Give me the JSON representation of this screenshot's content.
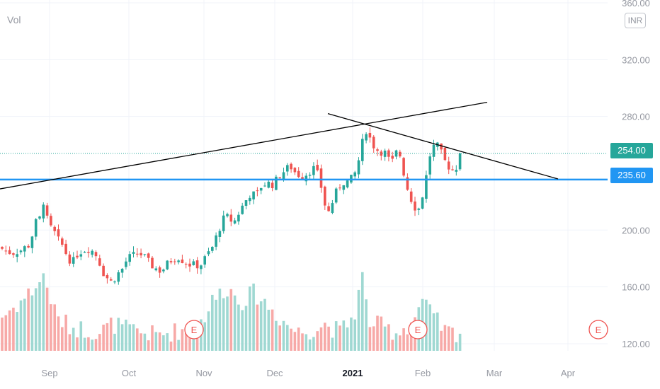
{
  "vol_label": "Vol",
  "currency": "INR",
  "colors": {
    "up": "#26a69a",
    "down": "#ef5350",
    "vol_up": "#9fd8d2",
    "vol_down": "#f7a9a7",
    "horizontal_line": "#2196f3",
    "trendline": "#000000",
    "grid": "#f0f3fa",
    "axis_text": "#9598a1",
    "earnings": "#ef5350"
  },
  "chart_data": {
    "type": "candlestick",
    "y_axis": {
      "ticks": [
        "360.00",
        "320.00",
        "280.00",
        "254.00",
        "235.60",
        "200.00",
        "160.00",
        "120.00"
      ],
      "range": [
        115,
        362
      ]
    },
    "x_axis": {
      "ticks": [
        "Sep",
        "Oct",
        "Nov",
        "Dec",
        "2021",
        "Feb",
        "Mar",
        "Apr"
      ]
    },
    "last_price": 254.0,
    "horizontal_line_price": 235.6,
    "earnings_markers": [
      "E",
      "E",
      "E"
    ],
    "close_path": [
      [
        0,
        188
      ],
      [
        8,
        185
      ],
      [
        18,
        184
      ],
      [
        30,
        186
      ],
      [
        42,
        190
      ],
      [
        50,
        205
      ],
      [
        56,
        208
      ],
      [
        62,
        222
      ],
      [
        68,
        203
      ],
      [
        75,
        200
      ],
      [
        82,
        193
      ],
      [
        90,
        188
      ],
      [
        96,
        180
      ],
      [
        104,
        178
      ],
      [
        110,
        184
      ],
      [
        118,
        186
      ],
      [
        126,
        187
      ],
      [
        134,
        184
      ],
      [
        140,
        178
      ],
      [
        146,
        170
      ],
      [
        152,
        166
      ],
      [
        158,
        163
      ],
      [
        164,
        168
      ],
      [
        172,
        172
      ],
      [
        180,
        180
      ],
      [
        188,
        182
      ],
      [
        196,
        184
      ],
      [
        204,
        181
      ],
      [
        212,
        176
      ],
      [
        220,
        173
      ],
      [
        228,
        171
      ],
      [
        236,
        176
      ],
      [
        244,
        180
      ],
      [
        252,
        181
      ],
      [
        260,
        178
      ],
      [
        268,
        176
      ],
      [
        276,
        175
      ],
      [
        284,
        176
      ],
      [
        292,
        182
      ],
      [
        300,
        188
      ],
      [
        306,
        196
      ],
      [
        312,
        204
      ],
      [
        318,
        210
      ],
      [
        324,
        208
      ],
      [
        330,
        205
      ],
      [
        338,
        213
      ],
      [
        346,
        220
      ],
      [
        354,
        226
      ],
      [
        362,
        224
      ],
      [
        370,
        232
      ],
      [
        378,
        233
      ],
      [
        386,
        232
      ],
      [
        394,
        238
      ],
      [
        402,
        242
      ],
      [
        410,
        245
      ],
      [
        418,
        240
      ],
      [
        426,
        238
      ],
      [
        434,
        240
      ],
      [
        442,
        244
      ],
      [
        450,
        238
      ],
      [
        456,
        225
      ],
      [
        462,
        210
      ],
      [
        468,
        218
      ],
      [
        476,
        228
      ],
      [
        484,
        234
      ],
      [
        492,
        234
      ],
      [
        500,
        238
      ],
      [
        506,
        248
      ],
      [
        512,
        262
      ],
      [
        518,
        272
      ],
      [
        524,
        262
      ],
      [
        530,
        258
      ],
      [
        536,
        255
      ],
      [
        542,
        256
      ],
      [
        548,
        250
      ],
      [
        554,
        248
      ],
      [
        560,
        255
      ],
      [
        566,
        252
      ],
      [
        572,
        235
      ],
      [
        578,
        225
      ],
      [
        584,
        218
      ],
      [
        590,
        213
      ],
      [
        596,
        223
      ],
      [
        602,
        238
      ],
      [
        608,
        255
      ],
      [
        614,
        260
      ],
      [
        620,
        258
      ],
      [
        626,
        250
      ],
      [
        632,
        246
      ],
      [
        638,
        242
      ],
      [
        644,
        244
      ],
      [
        650,
        254
      ]
    ],
    "volume_path": [
      [
        0,
        138
      ],
      [
        30,
        150
      ],
      [
        50,
        160
      ],
      [
        62,
        168
      ],
      [
        80,
        138
      ],
      [
        100,
        132
      ],
      [
        120,
        130
      ],
      [
        140,
        128
      ],
      [
        160,
        134
      ],
      [
        180,
        130
      ],
      [
        200,
        128
      ],
      [
        220,
        126
      ],
      [
        240,
        128
      ],
      [
        260,
        130
      ],
      [
        280,
        132
      ],
      [
        300,
        150
      ],
      [
        320,
        160
      ],
      [
        340,
        150
      ],
      [
        360,
        156
      ],
      [
        380,
        146
      ],
      [
        400,
        136
      ],
      [
        420,
        128
      ],
      [
        440,
        130
      ],
      [
        460,
        134
      ],
      [
        480,
        128
      ],
      [
        500,
        140
      ],
      [
        512,
        168
      ],
      [
        520,
        136
      ],
      [
        540,
        132
      ],
      [
        560,
        128
      ],
      [
        580,
        134
      ],
      [
        596,
        150
      ],
      [
        610,
        140
      ],
      [
        630,
        128
      ],
      [
        650,
        128
      ]
    ],
    "trendlines": [
      {
        "x1": 0,
        "y1": 229,
        "x2": 688,
        "y2": 290
      },
      {
        "x1": 463,
        "y1": 282,
        "x2": 788,
        "y2": 236
      }
    ]
  }
}
